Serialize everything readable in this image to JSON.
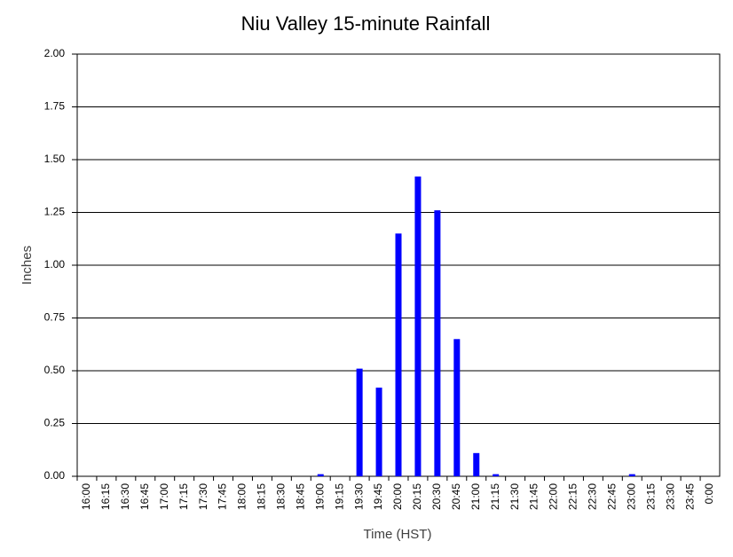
{
  "chart_data": {
    "type": "bar",
    "title": "Niu Valley 15-minute Rainfall",
    "x_label": "Time (HST)",
    "y_label": "Inches",
    "categories": [
      "16:00",
      "16:15",
      "16:30",
      "16:45",
      "17:00",
      "17:15",
      "17:30",
      "17:45",
      "18:00",
      "18:15",
      "18:30",
      "18:45",
      "19:00",
      "19:15",
      "19:30",
      "19:45",
      "20:00",
      "20:15",
      "20:30",
      "20:45",
      "21:00",
      "21:15",
      "21:30",
      "21:45",
      "22:00",
      "22:15",
      "22:30",
      "22:45",
      "23:00",
      "23:15",
      "23:30",
      "23:45",
      "0:00"
    ],
    "values": [
      0,
      0,
      0,
      0,
      0,
      0,
      0,
      0,
      0,
      0,
      0,
      0,
      0.01,
      0,
      0.51,
      0.42,
      1.15,
      1.42,
      1.26,
      0.65,
      0.11,
      0.01,
      0,
      0,
      0,
      0,
      0,
      0,
      0.01,
      0,
      0,
      0,
      0
    ],
    "color": "#0000ff",
    "ylim": [
      0,
      2
    ],
    "yticks": [
      {
        "value": 0,
        "label": "0.00"
      },
      {
        "value": 0.25,
        "label": "0.25"
      },
      {
        "value": 0.5,
        "label": "0.50"
      },
      {
        "value": 0.75,
        "label": "0.75"
      },
      {
        "value": 1,
        "label": "1.00"
      },
      {
        "value": 1.25,
        "label": "1.25"
      },
      {
        "value": 1.5,
        "label": "1.50"
      },
      {
        "value": 1.75,
        "label": "1.75"
      },
      {
        "value": 2,
        "label": "2.00"
      }
    ],
    "grid": true
  }
}
